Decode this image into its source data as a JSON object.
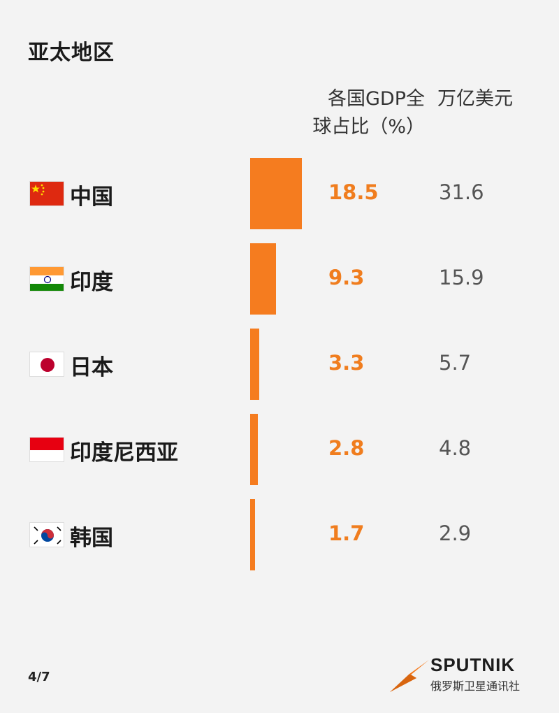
{
  "title": "亚太地区",
  "columns": {
    "share_header": [
      "各国GDP全",
      "球占比（%）"
    ],
    "gdp_header": "万亿美元"
  },
  "colors": {
    "bar": "#f57c1f",
    "share_text": "#f07d1e"
  },
  "chart_data": {
    "type": "bar",
    "orientation": "vertical-bars-per-row",
    "categories": [
      "中国",
      "印度",
      "日本",
      "印度尼西亚",
      "韩国"
    ],
    "series": [
      {
        "name": "各国GDP全球占比（%）",
        "values": [
          18.5,
          9.3,
          3.3,
          2.8,
          1.7
        ]
      },
      {
        "name": "万亿美元",
        "values": [
          31.6,
          15.9,
          5.7,
          4.8,
          2.9
        ]
      }
    ],
    "labels_share": [
      "18.5",
      "9.3",
      "3.3",
      "2.8",
      "1.7"
    ],
    "labels_gdp": [
      "31.6",
      "15.9",
      "5.7",
      "4.8",
      "2.9"
    ],
    "flags": [
      "china-flag-icon",
      "india-flag-icon",
      "japan-flag-icon",
      "indonesia-flag-icon",
      "korea-flag-icon"
    ]
  },
  "footer": {
    "page": "4/7",
    "logo_name": "SPUTNIK",
    "logo_sub": "俄罗斯卫星通讯社"
  }
}
